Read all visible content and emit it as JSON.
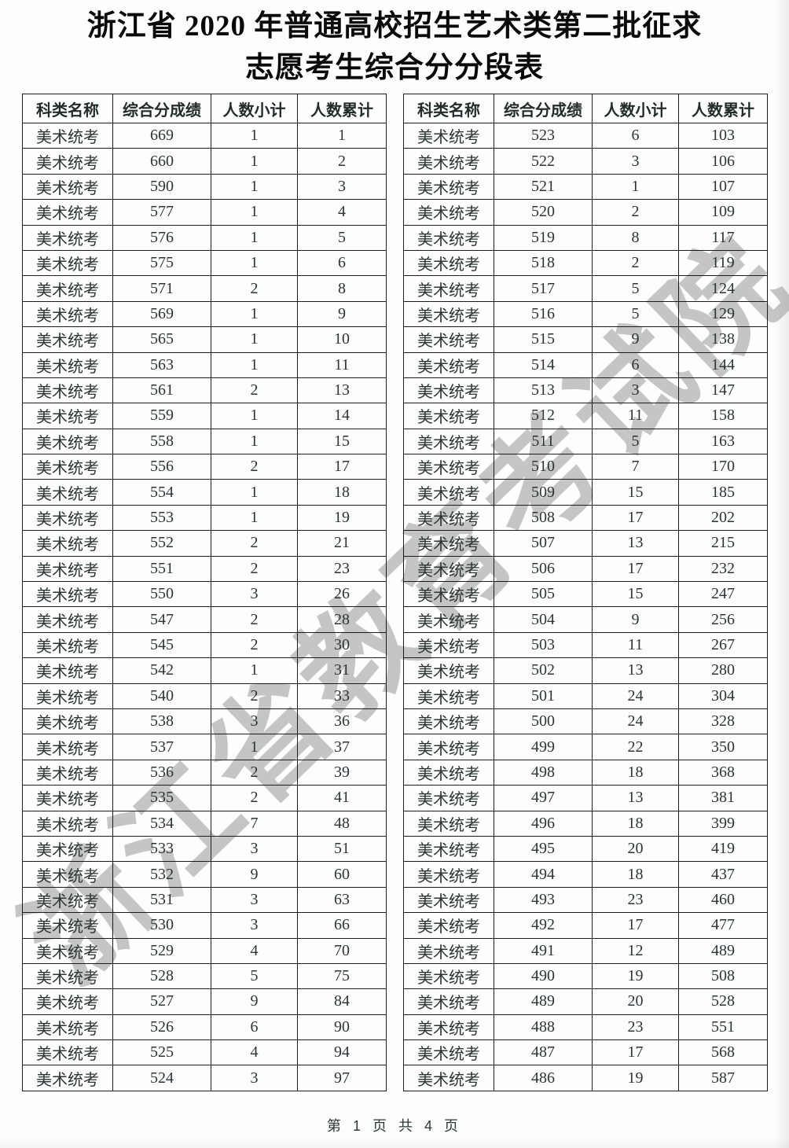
{
  "page": {
    "title_line1": "浙江省 2020 年普通高校招生艺术类第二批征求",
    "title_line2": "志愿考生综合分分段表",
    "watermark": "浙江省教育考试院",
    "footer": "第 1 页 共 4 页"
  },
  "colors": {
    "background": "#fdfdfd",
    "text": "#2b3531",
    "border": "#1b1b1b",
    "watermark_gray": "#8d8d8d"
  },
  "table": {
    "headers": [
      "科类名称",
      "综合分成绩",
      "人数小计",
      "人数累计"
    ],
    "category": "美术统考",
    "left_rows": [
      [
        669,
        1,
        1
      ],
      [
        660,
        1,
        2
      ],
      [
        590,
        1,
        3
      ],
      [
        577,
        1,
        4
      ],
      [
        576,
        1,
        5
      ],
      [
        575,
        1,
        6
      ],
      [
        571,
        2,
        8
      ],
      [
        569,
        1,
        9
      ],
      [
        565,
        1,
        10
      ],
      [
        563,
        1,
        11
      ],
      [
        561,
        2,
        13
      ],
      [
        559,
        1,
        14
      ],
      [
        558,
        1,
        15
      ],
      [
        556,
        2,
        17
      ],
      [
        554,
        1,
        18
      ],
      [
        553,
        1,
        19
      ],
      [
        552,
        2,
        21
      ],
      [
        551,
        2,
        23
      ],
      [
        550,
        3,
        26
      ],
      [
        547,
        2,
        28
      ],
      [
        545,
        2,
        30
      ],
      [
        542,
        1,
        31
      ],
      [
        540,
        2,
        33
      ],
      [
        538,
        3,
        36
      ],
      [
        537,
        1,
        37
      ],
      [
        536,
        2,
        39
      ],
      [
        535,
        2,
        41
      ],
      [
        534,
        7,
        48
      ],
      [
        533,
        3,
        51
      ],
      [
        532,
        9,
        60
      ],
      [
        531,
        3,
        63
      ],
      [
        530,
        3,
        66
      ],
      [
        529,
        4,
        70
      ],
      [
        528,
        5,
        75
      ],
      [
        527,
        9,
        84
      ],
      [
        526,
        6,
        90
      ],
      [
        525,
        4,
        94
      ],
      [
        524,
        3,
        97
      ]
    ],
    "right_rows": [
      [
        523,
        6,
        103
      ],
      [
        522,
        3,
        106
      ],
      [
        521,
        1,
        107
      ],
      [
        520,
        2,
        109
      ],
      [
        519,
        8,
        117
      ],
      [
        518,
        2,
        119
      ],
      [
        517,
        5,
        124
      ],
      [
        516,
        5,
        129
      ],
      [
        515,
        9,
        138
      ],
      [
        514,
        6,
        144
      ],
      [
        513,
        3,
        147
      ],
      [
        512,
        11,
        158
      ],
      [
        511,
        5,
        163
      ],
      [
        510,
        7,
        170
      ],
      [
        509,
        15,
        185
      ],
      [
        508,
        17,
        202
      ],
      [
        507,
        13,
        215
      ],
      [
        506,
        17,
        232
      ],
      [
        505,
        15,
        247
      ],
      [
        504,
        9,
        256
      ],
      [
        503,
        11,
        267
      ],
      [
        502,
        13,
        280
      ],
      [
        501,
        24,
        304
      ],
      [
        500,
        24,
        328
      ],
      [
        499,
        22,
        350
      ],
      [
        498,
        18,
        368
      ],
      [
        497,
        13,
        381
      ],
      [
        496,
        18,
        399
      ],
      [
        495,
        20,
        419
      ],
      [
        494,
        18,
        437
      ],
      [
        493,
        23,
        460
      ],
      [
        492,
        17,
        477
      ],
      [
        491,
        12,
        489
      ],
      [
        490,
        19,
        508
      ],
      [
        489,
        20,
        528
      ],
      [
        488,
        23,
        551
      ],
      [
        487,
        17,
        568
      ],
      [
        486,
        19,
        587
      ]
    ]
  }
}
